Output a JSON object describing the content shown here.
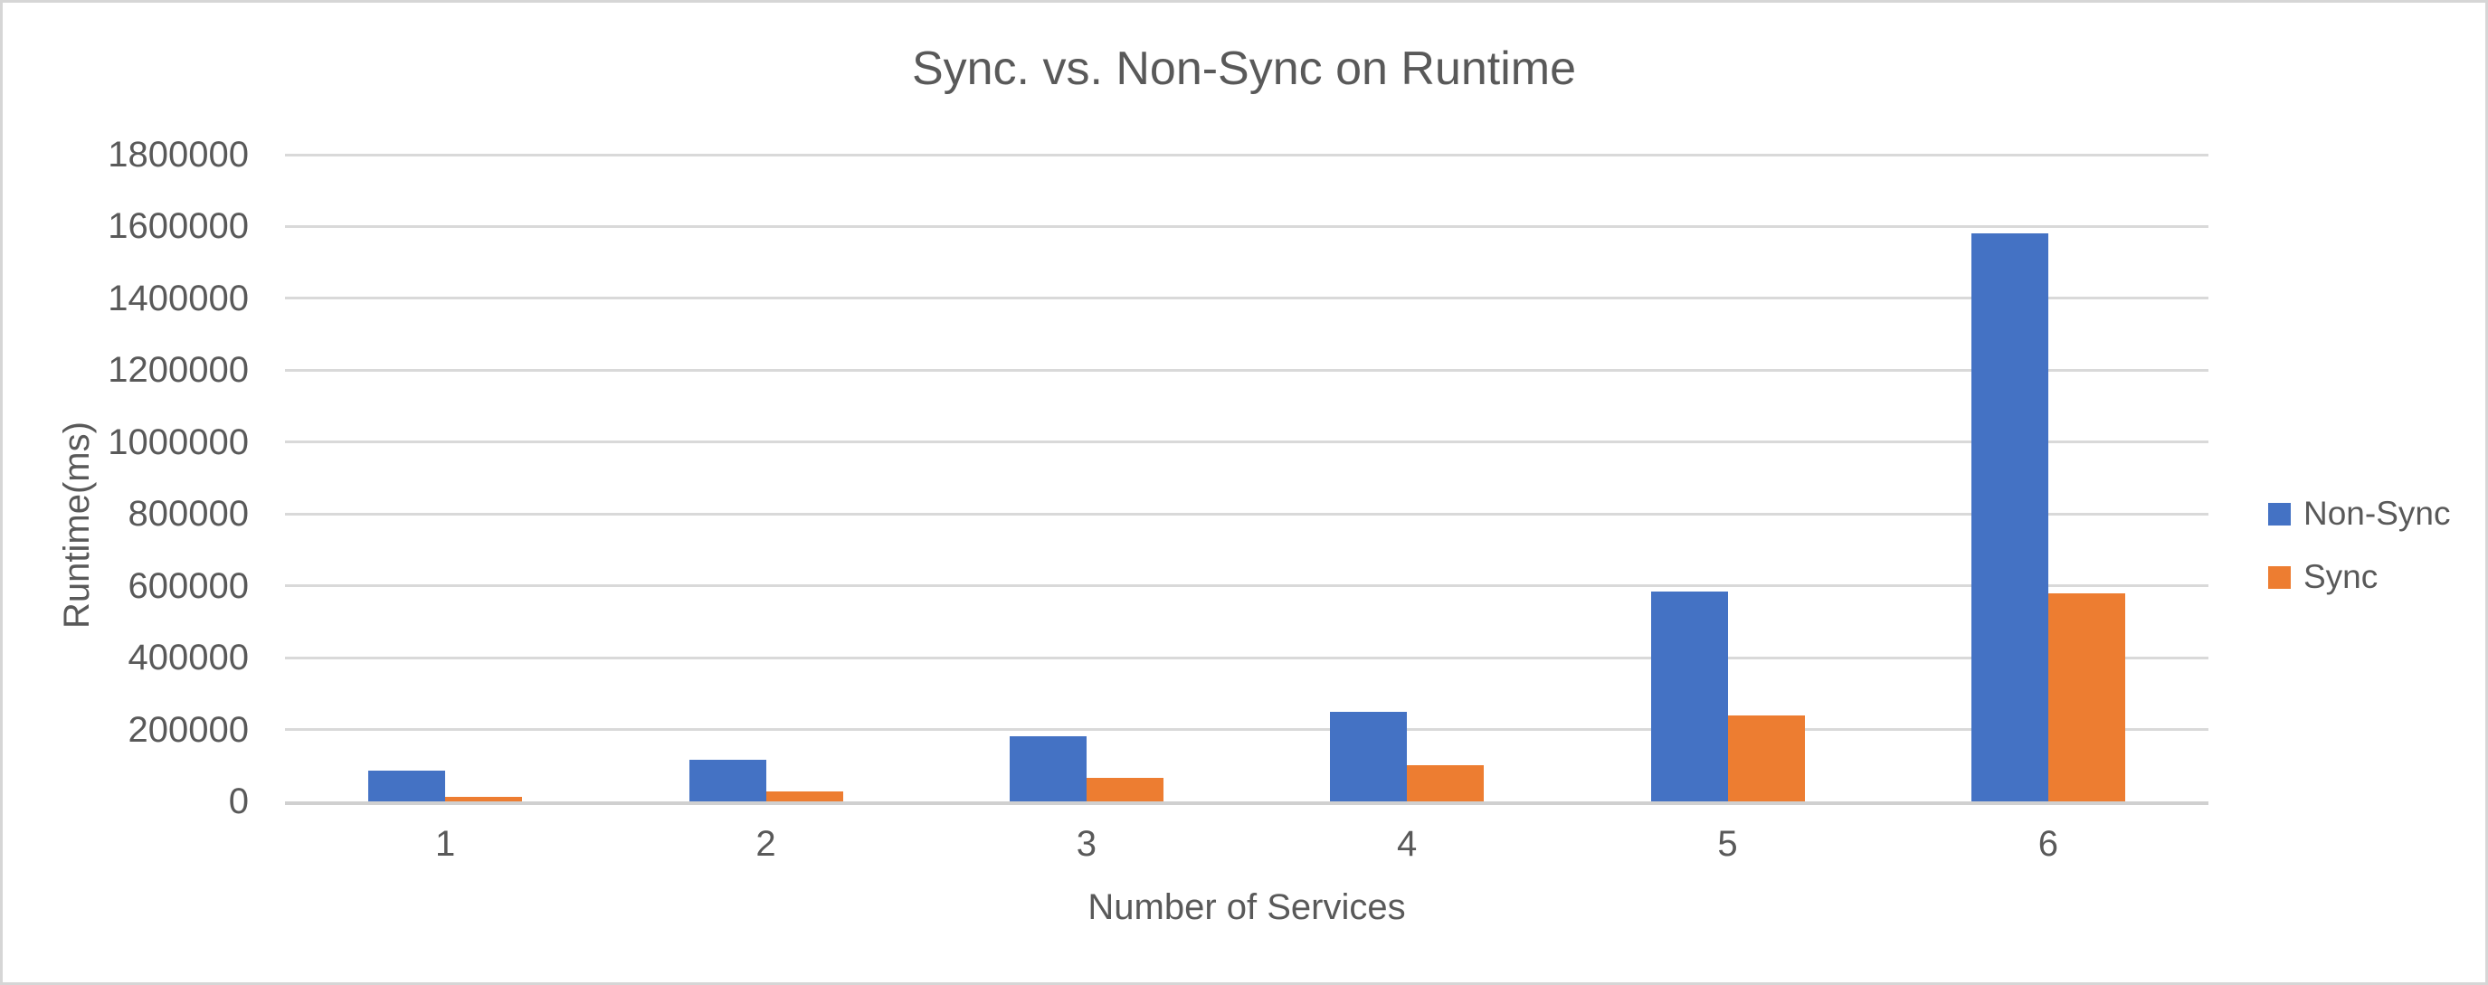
{
  "chart": {
    "title": "Sync. vs. Non-Sync on Runtime",
    "y_axis_title": "Runtime(ms)",
    "x_axis_title": "Number of Services"
  },
  "chart_data": {
    "type": "bar",
    "title": "Sync. vs. Non-Sync on Runtime",
    "xlabel": "Number of Services",
    "ylabel": "Runtime(ms)",
    "categories": [
      "1",
      "2",
      "3",
      "4",
      "5",
      "6"
    ],
    "series": [
      {
        "name": "Non-Sync",
        "color": "#4472C4",
        "values": [
          85000,
          115000,
          182000,
          250000,
          585000,
          1580000
        ]
      },
      {
        "name": "Sync",
        "color": "#ED7D31",
        "values": [
          12000,
          28000,
          66000,
          100000,
          240000,
          580000
        ]
      }
    ],
    "ylim": [
      0,
      1800000
    ],
    "y_tick_step": 200000,
    "y_ticks": [
      "0",
      "200000",
      "400000",
      "600000",
      "800000",
      "1000000",
      "1200000",
      "1400000",
      "1600000",
      "1800000"
    ],
    "grid": true,
    "legend_position": "right"
  },
  "colors": {
    "non_sync": "#4472C4",
    "sync": "#ED7D31",
    "gridline": "#D9D9D9",
    "axis_line": "#D0D0D0",
    "text": "#595959",
    "frame_border": "#D6D6D6"
  }
}
